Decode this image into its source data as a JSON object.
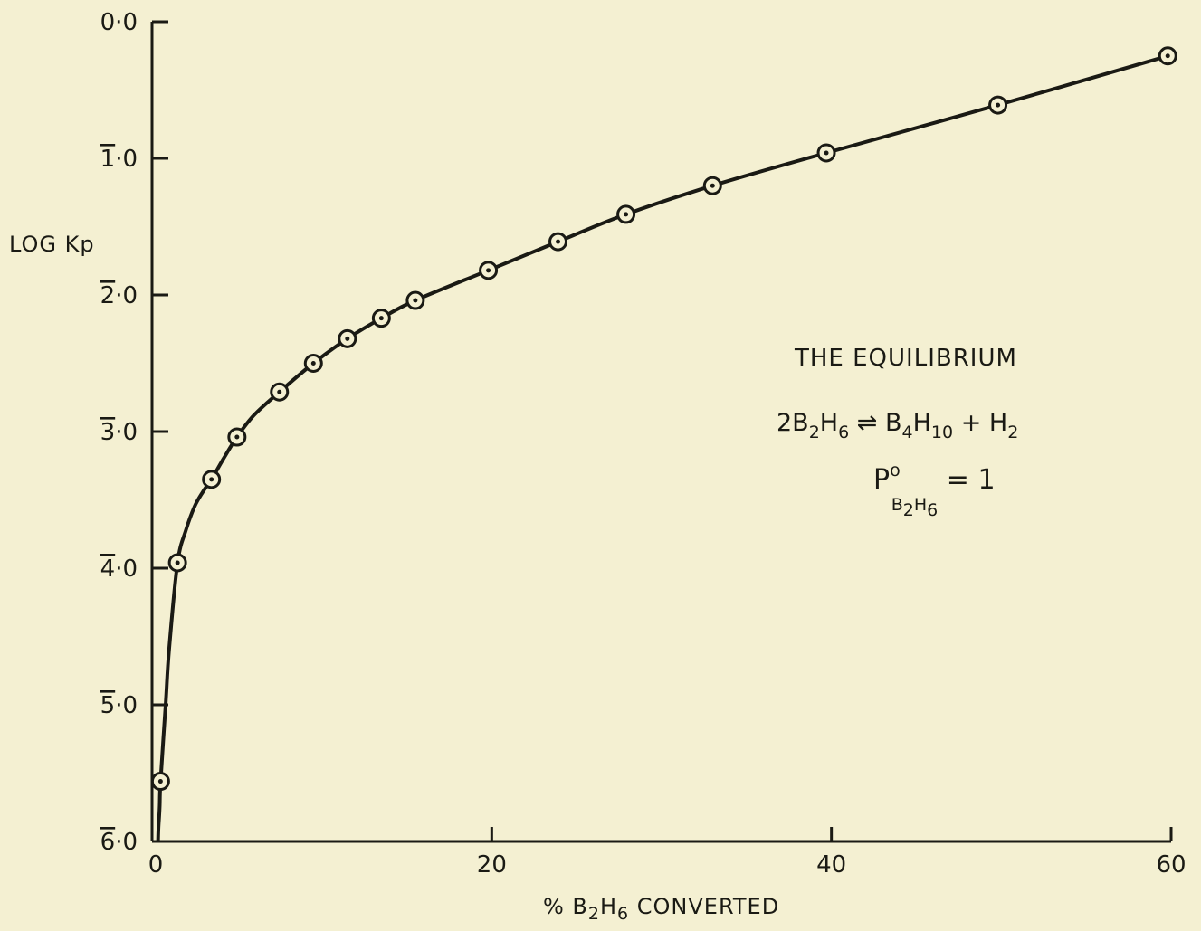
{
  "chart_data": {
    "type": "line",
    "xlabel_parts": [
      "% B",
      "2",
      "H",
      "6",
      " CONVERTED"
    ],
    "ylabel": "LOG Kp",
    "xlim": [
      0,
      60
    ],
    "ylim": [
      -6,
      0
    ],
    "x_ticks": [
      {
        "value": 0,
        "label": "0"
      },
      {
        "value": 20,
        "label": "20"
      },
      {
        "value": 40,
        "label": "40"
      },
      {
        "value": 60,
        "label": "60"
      }
    ],
    "y_ticks": [
      {
        "value": 0,
        "bar": "",
        "rest": "0·0"
      },
      {
        "value": -1,
        "bar": "1",
        "rest": "·0"
      },
      {
        "value": -2,
        "bar": "2",
        "rest": "·0"
      },
      {
        "value": -3,
        "bar": "3",
        "rest": "·0"
      },
      {
        "value": -4,
        "bar": "4",
        "rest": "·0"
      },
      {
        "value": -5,
        "bar": "5",
        "rest": "·0"
      },
      {
        "value": -6,
        "bar": "6",
        "rest": "·0"
      }
    ],
    "grid": false,
    "series": [
      {
        "x": [
          0.5,
          1.5,
          3.5,
          5,
          7.5,
          9.5,
          11.5,
          13.5,
          15.5,
          19.8,
          23.9,
          27.9,
          33,
          39.7,
          49.8,
          59.8
        ],
        "y": [
          -5.56,
          -3.96,
          -3.35,
          -3.04,
          -2.71,
          -2.5,
          -2.32,
          -2.17,
          -2.04,
          -1.82,
          -1.61,
          -1.41,
          -1.2,
          -0.96,
          -0.61,
          -0.25
        ]
      }
    ],
    "curve_x": [
      0.35,
      0.38,
      0.45,
      0.5,
      0.8,
      1.0,
      1.5,
      2.0,
      2.5,
      3.0,
      3.5,
      4.2,
      5.0,
      6.0,
      7.5,
      9.5,
      11.5,
      13.5,
      15.5,
      19.8,
      23.9,
      27.9,
      33,
      39.7,
      49.8,
      59.8
    ],
    "curve_y": [
      -6.0,
      -5.9,
      -5.75,
      -5.56,
      -5.0,
      -4.6,
      -3.96,
      -3.72,
      -3.55,
      -3.44,
      -3.35,
      -3.2,
      -3.04,
      -2.88,
      -2.71,
      -2.5,
      -2.32,
      -2.17,
      -2.04,
      -1.82,
      -1.61,
      -1.41,
      -1.2,
      -0.96,
      -0.61,
      -0.25
    ],
    "annotation": {
      "title": "THE EQUILIBRIUM",
      "eq_parts": [
        "2B",
        "2",
        "H",
        "6",
        " ⇌ B",
        "4",
        "H",
        "10",
        " + H",
        "2"
      ],
      "p_parts": [
        "P",
        "o",
        "B",
        "2",
        "H",
        "6",
        " = 1"
      ]
    }
  },
  "colors": {
    "background": "#f4f0d2",
    "ink": "#1a1a14"
  }
}
